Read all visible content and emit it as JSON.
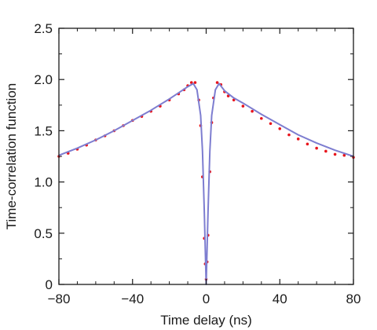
{
  "chart_data": {
    "type": "scatter",
    "title": "",
    "xlabel": "Time delay (ns)",
    "ylabel": "Time-correlation function",
    "xlim": [
      -80,
      80
    ],
    "ylim": [
      0,
      2.5
    ],
    "x_ticks": [
      {
        "value": -80,
        "label": "−80"
      },
      {
        "value": -40,
        "label": "−40"
      },
      {
        "value": 0,
        "label": "0"
      },
      {
        "value": 40,
        "label": "40"
      },
      {
        "value": 80,
        "label": "80"
      }
    ],
    "y_ticks": [
      {
        "value": 0,
        "label": "0"
      },
      {
        "value": 0.5,
        "label": "0.5"
      },
      {
        "value": 1.0,
        "label": "1.0"
      },
      {
        "value": 1.5,
        "label": "1.5"
      },
      {
        "value": 2.0,
        "label": "2.0"
      },
      {
        "value": 2.5,
        "label": "2.5"
      }
    ],
    "grid": false,
    "legend": "none",
    "series": [
      {
        "kind": "points",
        "color": "#e8141c",
        "x": [
          -80,
          -75,
          -70,
          -65,
          -60,
          -55,
          -50,
          -45,
          -40,
          -35,
          -30,
          -25,
          -20,
          -15,
          -12,
          -10,
          -8,
          -6,
          -4,
          -3,
          -2,
          -1,
          -0.5,
          0,
          0.5,
          1,
          2,
          3,
          4,
          6,
          8,
          10,
          12,
          15,
          20,
          25,
          30,
          35,
          40,
          45,
          50,
          55,
          60,
          65,
          70,
          75,
          80
        ],
        "y": [
          1.25,
          1.28,
          1.32,
          1.36,
          1.41,
          1.45,
          1.5,
          1.55,
          1.6,
          1.64,
          1.69,
          1.74,
          1.8,
          1.86,
          1.9,
          1.94,
          1.97,
          1.97,
          1.8,
          1.55,
          1.05,
          0.45,
          0.2,
          0.05,
          0.22,
          0.48,
          1.1,
          1.58,
          1.82,
          1.97,
          1.95,
          1.88,
          1.84,
          1.8,
          1.74,
          1.69,
          1.62,
          1.57,
          1.52,
          1.46,
          1.42,
          1.37,
          1.33,
          1.3,
          1.27,
          1.26,
          1.24
        ]
      },
      {
        "kind": "fit-line",
        "color": "#7d7dd0",
        "x": [
          -80,
          -70,
          -60,
          -50,
          -40,
          -30,
          -20,
          -15,
          -10,
          -7,
          -5,
          -3,
          -2,
          -1,
          -0.5,
          0,
          0.5,
          1,
          2,
          3,
          5,
          7,
          10,
          15,
          20,
          30,
          40,
          50,
          60,
          70,
          80
        ],
        "y": [
          1.26,
          1.33,
          1.41,
          1.5,
          1.6,
          1.7,
          1.81,
          1.87,
          1.93,
          1.96,
          1.9,
          1.65,
          1.3,
          0.7,
          0.35,
          0,
          0.35,
          0.7,
          1.3,
          1.65,
          1.9,
          1.96,
          1.89,
          1.82,
          1.77,
          1.66,
          1.56,
          1.46,
          1.38,
          1.31,
          1.25
        ]
      }
    ]
  }
}
